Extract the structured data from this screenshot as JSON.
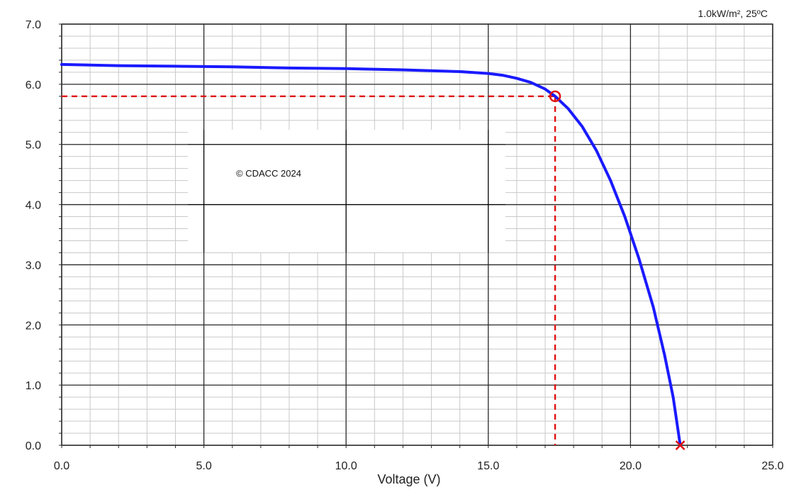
{
  "chart_data": {
    "type": "line",
    "title": "",
    "conditions_label": "1.0kW/m², 25ºC",
    "xlabel": "Voltage (V)",
    "ylabel": "",
    "xlim": [
      0,
      25
    ],
    "ylim": [
      0,
      7
    ],
    "x_ticks": [
      "0.0",
      "5.0",
      "10.0",
      "15.0",
      "20.0",
      "25.0"
    ],
    "y_ticks": [
      "0.0",
      "1.0",
      "2.0",
      "3.0",
      "4.0",
      "5.0",
      "6.0",
      "7.0"
    ],
    "grid": true,
    "series": [
      {
        "color": "#1a1aff",
        "points": [
          [
            0,
            6.33
          ],
          [
            2,
            6.31
          ],
          [
            4,
            6.3
          ],
          [
            6,
            6.29
          ],
          [
            8,
            6.27
          ],
          [
            10,
            6.26
          ],
          [
            12,
            6.24
          ],
          [
            14,
            6.21
          ],
          [
            15,
            6.18
          ],
          [
            15.5,
            6.15
          ],
          [
            16,
            6.1
          ],
          [
            16.5,
            6.03
          ],
          [
            17,
            5.92
          ],
          [
            17.35,
            5.8
          ],
          [
            17.8,
            5.6
          ],
          [
            18.3,
            5.3
          ],
          [
            18.8,
            4.9
          ],
          [
            19.3,
            4.4
          ],
          [
            19.8,
            3.8
          ],
          [
            20.3,
            3.1
          ],
          [
            20.8,
            2.3
          ],
          [
            21.2,
            1.5
          ],
          [
            21.5,
            0.8
          ],
          [
            21.75,
            0.0
          ]
        ]
      }
    ],
    "max_power_point": {
      "x": 17.35,
      "y": 5.8,
      "marker": "circle",
      "color": "#e01010"
    },
    "open_circuit_point": {
      "x": 21.75,
      "y": 0.0,
      "marker": "x",
      "color": "#e01010"
    },
    "reference_lines": {
      "color": "#e01010",
      "style": "dashed"
    },
    "annotations": [
      {
        "text": "© CDACC 2024"
      }
    ]
  }
}
